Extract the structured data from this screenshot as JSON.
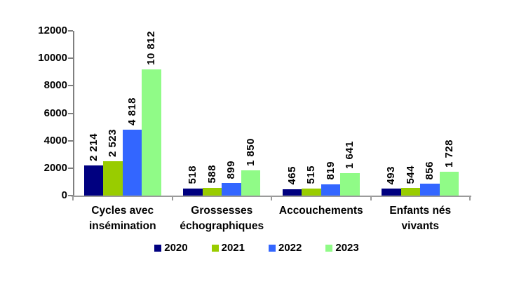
{
  "chart_data": {
    "type": "bar",
    "title": "",
    "categories": [
      "Cycles avec insémination",
      "Grossesses échographiques",
      "Accouchements",
      "Enfants nés vivants"
    ],
    "categories_display": [
      "Cycles avec\ninsémination",
      "Grossesses\néchographiques",
      "Accouchements",
      "Enfants nés vivants"
    ],
    "series": [
      {
        "name": "2020",
        "color": "#000080",
        "values": [
          2214,
          518,
          465,
          493
        ],
        "labels": [
          "2 214",
          "518",
          "465",
          "493"
        ]
      },
      {
        "name": "2021",
        "color": "#99CC00",
        "values": [
          2523,
          588,
          515,
          544
        ],
        "labels": [
          "2 523",
          "588",
          "515",
          "544"
        ]
      },
      {
        "name": "2022",
        "color": "#3366FF",
        "values": [
          4818,
          899,
          819,
          856
        ],
        "labels": [
          "4 818",
          "899",
          "819",
          "856"
        ]
      },
      {
        "name": "2023",
        "color": "#90FB87",
        "values": [
          10812,
          1850,
          1641,
          1728
        ],
        "labels": [
          "10 812",
          "1 850",
          "1 641",
          "1 728"
        ]
      }
    ],
    "y_axis": {
      "min": 0,
      "max": 12000,
      "step": 2000,
      "tick_labels": [
        "0",
        "2000",
        "4000",
        "6000",
        "8000",
        "10000",
        "12000"
      ]
    },
    "legend": {
      "position": "bottom",
      "entries": [
        "2020",
        "2021",
        "2022",
        "2023"
      ]
    },
    "grid": false,
    "value_label_rotation": 90,
    "axis_colors": {
      "y_axis": "#7F7F7F",
      "baseline": "#9B9B9B"
    }
  }
}
